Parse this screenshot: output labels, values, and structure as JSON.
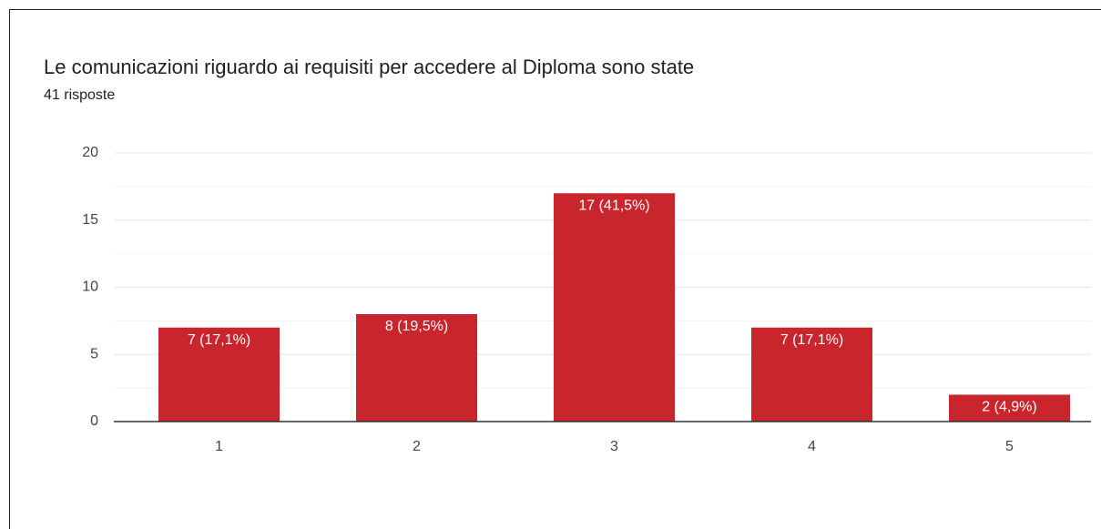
{
  "chart_data": {
    "type": "bar",
    "title": "Le comunicazioni riguardo ai requisiti per accedere al Diploma sono state",
    "subtitle": "41 risposte",
    "categories": [
      "1",
      "2",
      "3",
      "4",
      "5"
    ],
    "values": [
      7,
      8,
      17,
      7,
      2
    ],
    "value_labels": [
      "7 (17,1%)",
      "8 (19,5%)",
      "17 (41,5%)",
      "7 (17,1%)",
      "2 (4,9%)"
    ],
    "color": "#c9252d",
    "ylim": [
      0,
      20
    ],
    "yticks": [
      0,
      5,
      10,
      15,
      20
    ],
    "yminorticks": [
      2.5,
      7.5,
      12.5,
      17.5
    ],
    "grid": true
  }
}
